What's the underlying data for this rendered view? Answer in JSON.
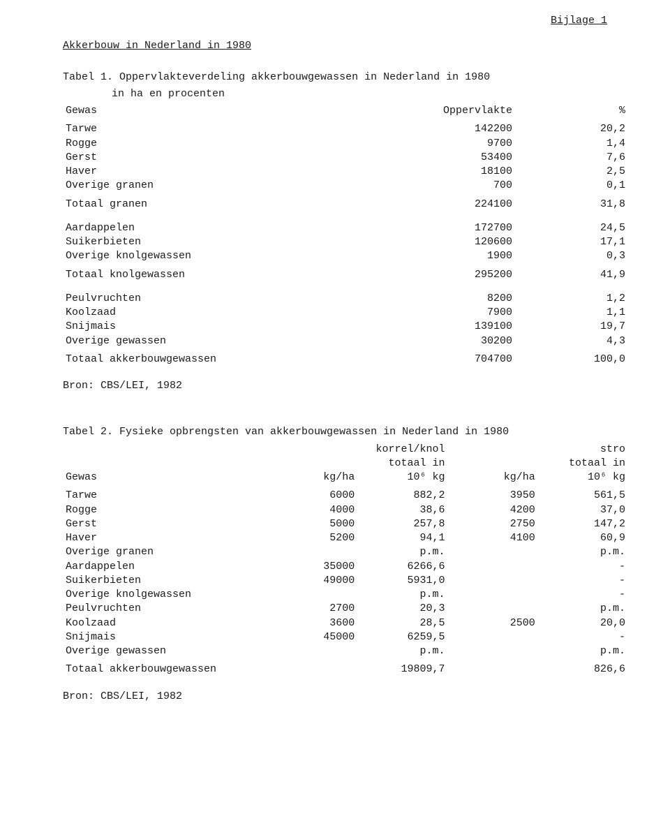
{
  "header": {
    "appendix": "Bijlage 1"
  },
  "section_title": "Akkerbouw in Nederland in 1980",
  "table1": {
    "caption_line1": "Tabel 1. Oppervlakteverdeling akkerbouwgewassen in Nederland in 1980",
    "caption_line2": "in ha en procenten",
    "columns": {
      "gewas": "Gewas",
      "oppervlakte": "Oppervlakte",
      "pct": "%"
    },
    "groups": [
      {
        "rows": [
          {
            "label": "Tarwe",
            "val": "142200",
            "pct": "20,2"
          },
          {
            "label": "Rogge",
            "val": "9700",
            "pct": "1,4"
          },
          {
            "label": "Gerst",
            "val": "53400",
            "pct": "7,6"
          },
          {
            "label": "Haver",
            "val": "18100",
            "pct": "2,5"
          },
          {
            "label": "Overige granen",
            "val": "700",
            "pct": "0,1"
          }
        ],
        "subtotal": {
          "label": "Totaal granen",
          "val": "224100",
          "pct": "31,8"
        }
      },
      {
        "rows": [
          {
            "label": "Aardappelen",
            "val": "172700",
            "pct": "24,5"
          },
          {
            "label": "Suikerbieten",
            "val": "120600",
            "pct": "17,1"
          },
          {
            "label": "Overige knolgewassen",
            "val": "1900",
            "pct": "0,3"
          }
        ],
        "subtotal": {
          "label": "Totaal knolgewassen",
          "val": "295200",
          "pct": "41,9"
        }
      },
      {
        "rows": [
          {
            "label": "Peulvruchten",
            "val": "8200",
            "pct": "1,2"
          },
          {
            "label": "Koolzaad",
            "val": "7900",
            "pct": "1,1"
          },
          {
            "label": "Snijmais",
            "val": "139100",
            "pct": "19,7"
          },
          {
            "label": "Overige gewassen",
            "val": "30200",
            "pct": "4,3"
          }
        ],
        "subtotal": {
          "label": "Totaal akkerbouwgewassen",
          "val": "704700",
          "pct": "100,0"
        }
      }
    ],
    "source": "Bron: CBS/LEI, 1982"
  },
  "table2": {
    "caption": "Tabel 2. Fysieke opbrengsten van akkerbouwgewassen in Nederland in 1980",
    "head": {
      "group_korrel": "korrel/knol",
      "group_stro": "stro",
      "totaal_in": "totaal in",
      "gewas": "Gewas",
      "kgha": "kg/ha",
      "e6kg": "10⁶ kg"
    },
    "rows": [
      {
        "label": "Tarwe",
        "kgha1": "6000",
        "tot1": "882,2",
        "kgha2": "3950",
        "tot2": "561,5"
      },
      {
        "label": "Rogge",
        "kgha1": "4000",
        "tot1": "38,6",
        "kgha2": "4200",
        "tot2": "37,0"
      },
      {
        "label": "Gerst",
        "kgha1": "5000",
        "tot1": "257,8",
        "kgha2": "2750",
        "tot2": "147,2"
      },
      {
        "label": "Haver",
        "kgha1": "5200",
        "tot1": "94,1",
        "kgha2": "4100",
        "tot2": "60,9"
      },
      {
        "label": "Overige granen",
        "kgha1": "",
        "tot1": "p.m.",
        "kgha2": "",
        "tot2": "p.m."
      },
      {
        "label": "Aardappelen",
        "kgha1": "35000",
        "tot1": "6266,6",
        "kgha2": "",
        "tot2": "-"
      },
      {
        "label": "Suikerbieten",
        "kgha1": "49000",
        "tot1": "5931,0",
        "kgha2": "",
        "tot2": "-"
      },
      {
        "label": "Overige knolgewassen",
        "kgha1": "",
        "tot1": "p.m.",
        "kgha2": "",
        "tot2": "-"
      },
      {
        "label": "Peulvruchten",
        "kgha1": "2700",
        "tot1": "20,3",
        "kgha2": "",
        "tot2": "p.m."
      },
      {
        "label": "Koolzaad",
        "kgha1": "3600",
        "tot1": "28,5",
        "kgha2": "2500",
        "tot2": "20,0"
      },
      {
        "label": "Snijmais",
        "kgha1": "45000",
        "tot1": "6259,5",
        "kgha2": "",
        "tot2": "-"
      },
      {
        "label": "Overige gewassen",
        "kgha1": "",
        "tot1": "p.m.",
        "kgha2": "",
        "tot2": "p.m."
      }
    ],
    "total": {
      "label": "Totaal akkerbouwgewassen",
      "tot1": "19809,7",
      "tot2": "826,6"
    },
    "source": "Bron: CBS/LEI, 1982"
  }
}
